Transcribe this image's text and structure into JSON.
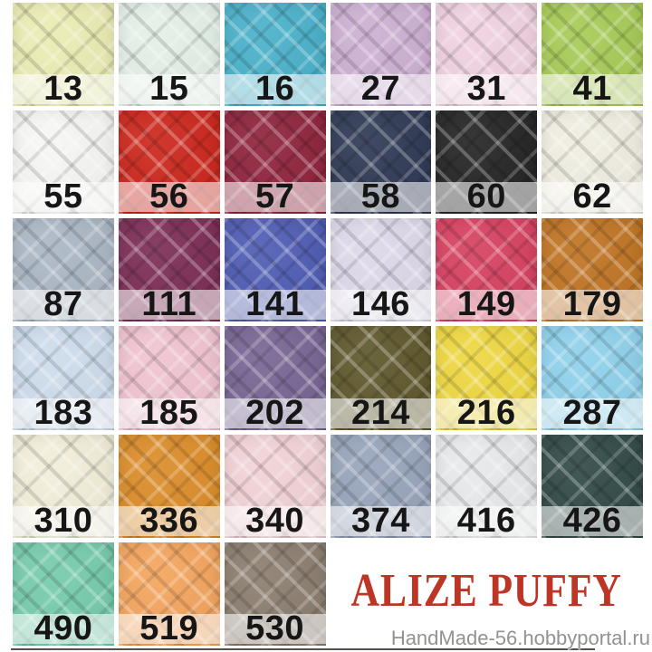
{
  "brand": {
    "title": "ALIZE PUFFY",
    "color": "#bd3524"
  },
  "watermark": {
    "text": "HandMade-56.hobbyportal.ru",
    "color": "#909294"
  },
  "grid": {
    "rows": 6,
    "columns": 6,
    "number_color": "#161616",
    "label_band_color": "#ffffff",
    "swatches": [
      {
        "number": "13",
        "color": "#ebecb2"
      },
      {
        "number": "15",
        "color": "#e3f0e7"
      },
      {
        "number": "16",
        "color": "#47b0c9"
      },
      {
        "number": "27",
        "color": "#ccafd2"
      },
      {
        "number": "31",
        "color": "#f1d1e1"
      },
      {
        "number": "41",
        "color": "#a6ca54"
      },
      {
        "number": "55",
        "color": "#f6f6f4"
      },
      {
        "number": "56",
        "color": "#cb2318"
      },
      {
        "number": "57",
        "color": "#8d2039"
      },
      {
        "number": "58",
        "color": "#2c3652"
      },
      {
        "number": "60",
        "color": "#212121"
      },
      {
        "number": "62",
        "color": "#f0eee1"
      },
      {
        "number": "87",
        "color": "#aab6c4"
      },
      {
        "number": "111",
        "color": "#7a2a52"
      },
      {
        "number": "141",
        "color": "#4c5ab2"
      },
      {
        "number": "146",
        "color": "#ddd8e9"
      },
      {
        "number": "149",
        "color": "#d63e5e"
      },
      {
        "number": "179",
        "color": "#bf7220"
      },
      {
        "number": "183",
        "color": "#cddcec"
      },
      {
        "number": "185",
        "color": "#f0c3d0"
      },
      {
        "number": "202",
        "color": "#756392"
      },
      {
        "number": "214",
        "color": "#5c5529"
      },
      {
        "number": "216",
        "color": "#eed73e"
      },
      {
        "number": "287",
        "color": "#8ed1ec"
      },
      {
        "number": "310",
        "color": "#f2eed9"
      },
      {
        "number": "336",
        "color": "#db8b26"
      },
      {
        "number": "340",
        "color": "#f2d2d6"
      },
      {
        "number": "374",
        "color": "#96a3ba"
      },
      {
        "number": "416",
        "color": "#e7e9ea"
      },
      {
        "number": "426",
        "color": "#2e4743"
      },
      {
        "number": "490",
        "color": "#74cbab"
      },
      {
        "number": "519",
        "color": "#f4a45c"
      },
      {
        "number": "530",
        "color": "#8a7c6d"
      }
    ]
  }
}
